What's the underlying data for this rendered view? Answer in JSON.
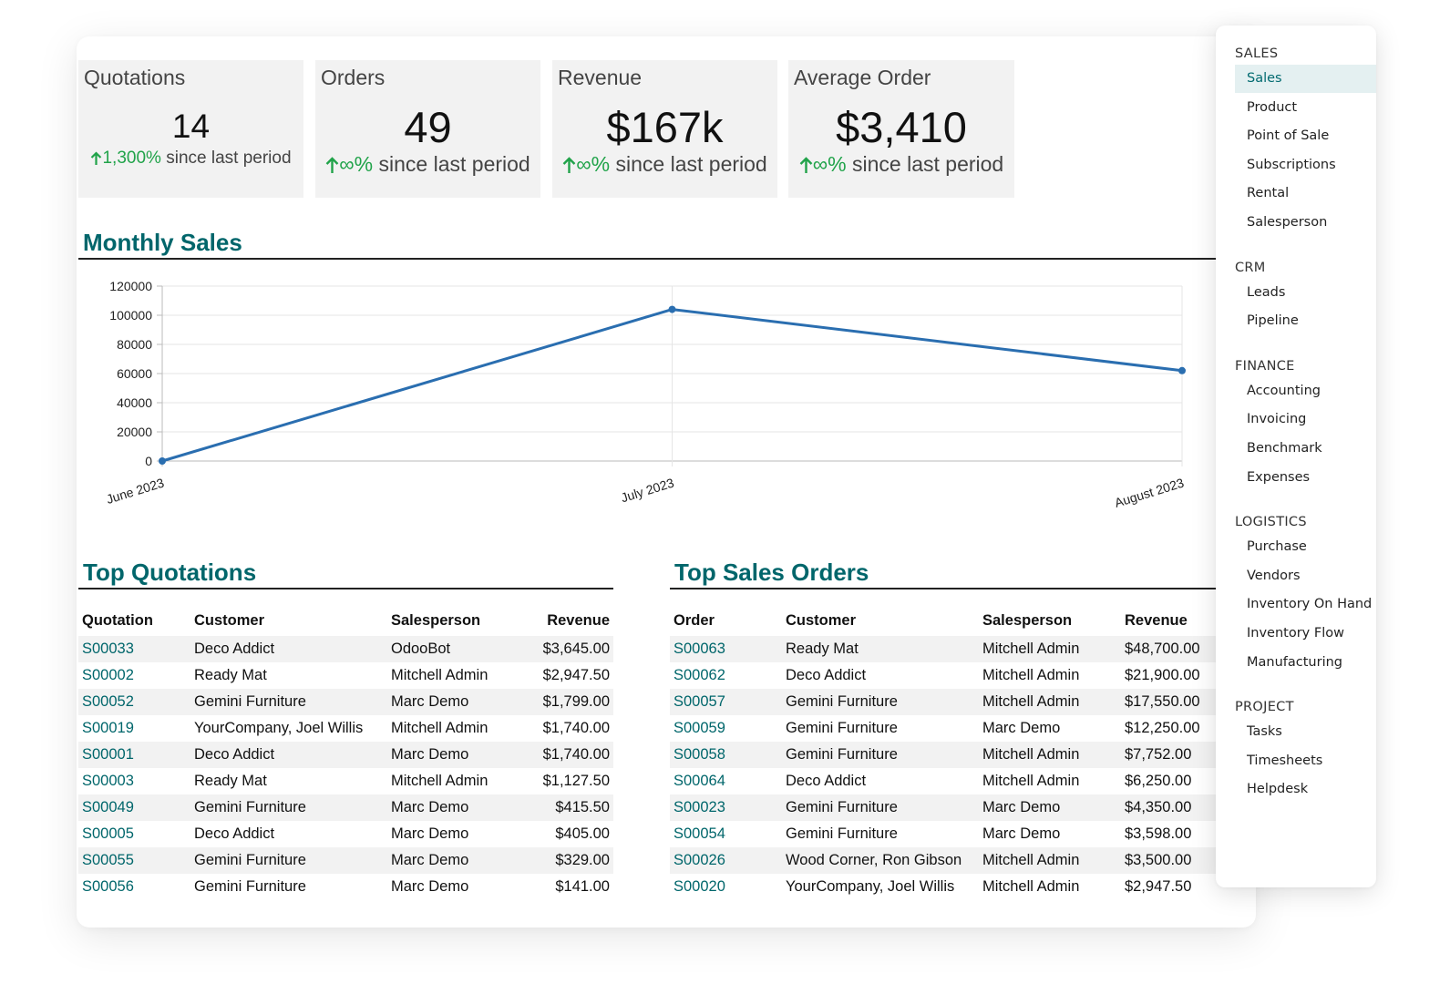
{
  "kpis": [
    {
      "title": "Quotations",
      "value": "14",
      "pct": "1,300%",
      "since": "since last period"
    },
    {
      "title": "Orders",
      "value": "49",
      "pct": "∞%",
      "since": "since last period"
    },
    {
      "title": "Revenue",
      "value": "$167k",
      "pct": "∞%",
      "since": "since last period"
    },
    {
      "title": "Average Order",
      "value": "$3,410",
      "pct": "∞%",
      "since": "since last period"
    }
  ],
  "monthly_sales": {
    "title": "Monthly Sales"
  },
  "chart_data": {
    "type": "line",
    "title": "Monthly Sales",
    "categories": [
      "June 2023",
      "July 2023",
      "August 2023"
    ],
    "values": [
      0,
      104000,
      62000
    ],
    "ylim": [
      0,
      120000
    ],
    "yticks": [
      "120000",
      "100000",
      "80000",
      "60000",
      "40000",
      "20000",
      "0"
    ],
    "grid": true,
    "color": "#2a6eb0"
  },
  "top_quotations": {
    "title": "Top Quotations",
    "headers": [
      "Quotation",
      "Customer",
      "Salesperson",
      "Revenue"
    ],
    "rows": [
      [
        "S00033",
        "Deco Addict",
        "OdooBot",
        "$3,645.00"
      ],
      [
        "S00002",
        "Ready Mat",
        "Mitchell Admin",
        "$2,947.50"
      ],
      [
        "S00052",
        "Gemini Furniture",
        "Marc Demo",
        "$1,799.00"
      ],
      [
        "S00019",
        "YourCompany, Joel Willis",
        "Mitchell Admin",
        "$1,740.00"
      ],
      [
        "S00001",
        "Deco Addict",
        "Marc Demo",
        "$1,740.00"
      ],
      [
        "S00003",
        "Ready Mat",
        "Mitchell Admin",
        "$1,127.50"
      ],
      [
        "S00049",
        "Gemini Furniture",
        "Marc Demo",
        "$415.50"
      ],
      [
        "S00005",
        "Deco Addict",
        "Marc Demo",
        "$405.00"
      ],
      [
        "S00055",
        "Gemini Furniture",
        "Marc Demo",
        "$329.00"
      ],
      [
        "S00056",
        "Gemini Furniture",
        "Marc Demo",
        "$141.00"
      ]
    ]
  },
  "top_orders": {
    "title": "Top Sales Orders",
    "headers": [
      "Order",
      "Customer",
      "Salesperson",
      "Revenue"
    ],
    "rows": [
      [
        "S00063",
        "Ready Mat",
        "Mitchell Admin",
        "$48,700.00"
      ],
      [
        "S00062",
        "Deco Addict",
        "Mitchell Admin",
        "$21,900.00"
      ],
      [
        "S00057",
        "Gemini Furniture",
        "Mitchell Admin",
        "$17,550.00"
      ],
      [
        "S00059",
        "Gemini Furniture",
        "Marc Demo",
        "$12,250.00"
      ],
      [
        "S00058",
        "Gemini Furniture",
        "Mitchell Admin",
        "$7,752.00"
      ],
      [
        "S00064",
        "Deco Addict",
        "Mitchell Admin",
        "$6,250.00"
      ],
      [
        "S00023",
        "Gemini Furniture",
        "Marc Demo",
        "$4,350.00"
      ],
      [
        "S00054",
        "Gemini Furniture",
        "Marc Demo",
        "$3,598.00"
      ],
      [
        "S00026",
        "Wood Corner, Ron Gibson",
        "Mitchell Admin",
        "$3,500.00"
      ],
      [
        "S00020",
        "YourCompany, Joel Willis",
        "Mitchell Admin",
        "$2,947.50"
      ]
    ]
  },
  "side_menu": {
    "sections": [
      {
        "label": "SALES",
        "items": [
          "Sales",
          "Product",
          "Point of Sale",
          "Subscriptions",
          "Rental",
          "Salesperson"
        ]
      },
      {
        "label": "CRM",
        "items": [
          "Leads",
          "Pipeline"
        ]
      },
      {
        "label": "FINANCE",
        "items": [
          "Accounting",
          "Invoicing",
          "Benchmark",
          "Expenses"
        ]
      },
      {
        "label": "LOGISTICS",
        "items": [
          "Purchase",
          "Vendors",
          "Inventory On Hand",
          "Inventory Flow",
          "Manufacturing"
        ]
      },
      {
        "label": "PROJECT",
        "items": [
          "Tasks",
          "Timesheets",
          "Helpdesk"
        ]
      }
    ],
    "active_item": "Sales",
    "accent_color": "#016a70"
  },
  "colors": {
    "accent": "#00666b",
    "positive": "#21a34a",
    "line": "#2a6eb0"
  }
}
